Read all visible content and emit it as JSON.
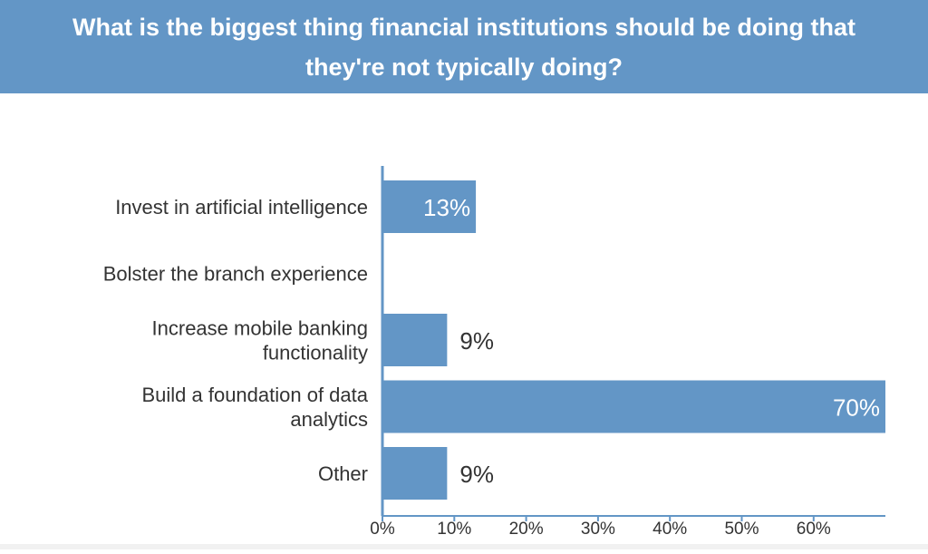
{
  "header": {
    "title": "What is the biggest thing financial institutions should be doing that they're not typically doing?"
  },
  "colors": {
    "header_bg": "#6396c6",
    "bar": "#6396c6",
    "axis": "#6396c6",
    "text": "#333333",
    "label_inside": "#ffffff"
  },
  "chart_data": {
    "type": "bar",
    "orientation": "horizontal",
    "categories": [
      "Invest in artificial intelligence",
      "Bolster the branch experience",
      "Increase mobile banking functionality",
      "Build a foundation of data analytics",
      "Other"
    ],
    "category_lines": [
      [
        "Invest in artificial intelligence"
      ],
      [
        "Bolster the branch experience"
      ],
      [
        "Increase mobile banking",
        "functionality"
      ],
      [
        "Build a foundation of data",
        "analytics"
      ],
      [
        "Other"
      ]
    ],
    "values": [
      13,
      0,
      9,
      70,
      9
    ],
    "data_labels": [
      "13%",
      "",
      "9%",
      "70%",
      "9%"
    ],
    "xlim": [
      0,
      70
    ],
    "ticks": [
      0,
      10,
      20,
      30,
      40,
      50,
      60
    ],
    "tick_labels": [
      "0%",
      "10%",
      "20%",
      "30%",
      "40%",
      "50%",
      "60%"
    ],
    "grid": false
  }
}
